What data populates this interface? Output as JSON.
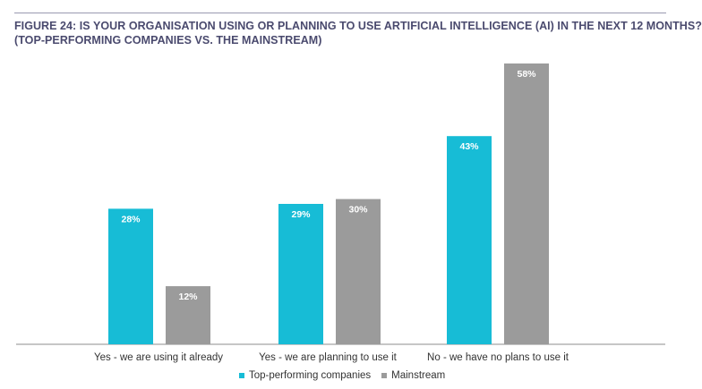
{
  "chart_data": {
    "type": "bar",
    "title_line1": "FIGURE 24: IS YOUR ORGANISATION USING OR PLANNING TO USE ARTIFICIAL INTELLIGENCE (AI) IN THE NEXT 12 MONTHS?",
    "title_line2": "(TOP-PERFORMING COMPANIES VS. THE MAINSTREAM)",
    "categories": [
      "Yes - we are using it already",
      "Yes - we are planning to use it",
      "No - we have no plans to use it"
    ],
    "series": [
      {
        "name": "Top-performing companies",
        "color": "#17bcd6",
        "values": [
          28,
          29,
          43
        ],
        "labels": [
          "28%",
          "29%",
          "43%"
        ]
      },
      {
        "name": "Mainstream",
        "color": "#9b9b9b",
        "values": [
          12,
          30,
          58
        ],
        "labels": [
          "12%",
          "30%",
          "58%"
        ]
      }
    ],
    "ylim": [
      0,
      58
    ],
    "grid": false,
    "legend_position": "bottom-center"
  }
}
